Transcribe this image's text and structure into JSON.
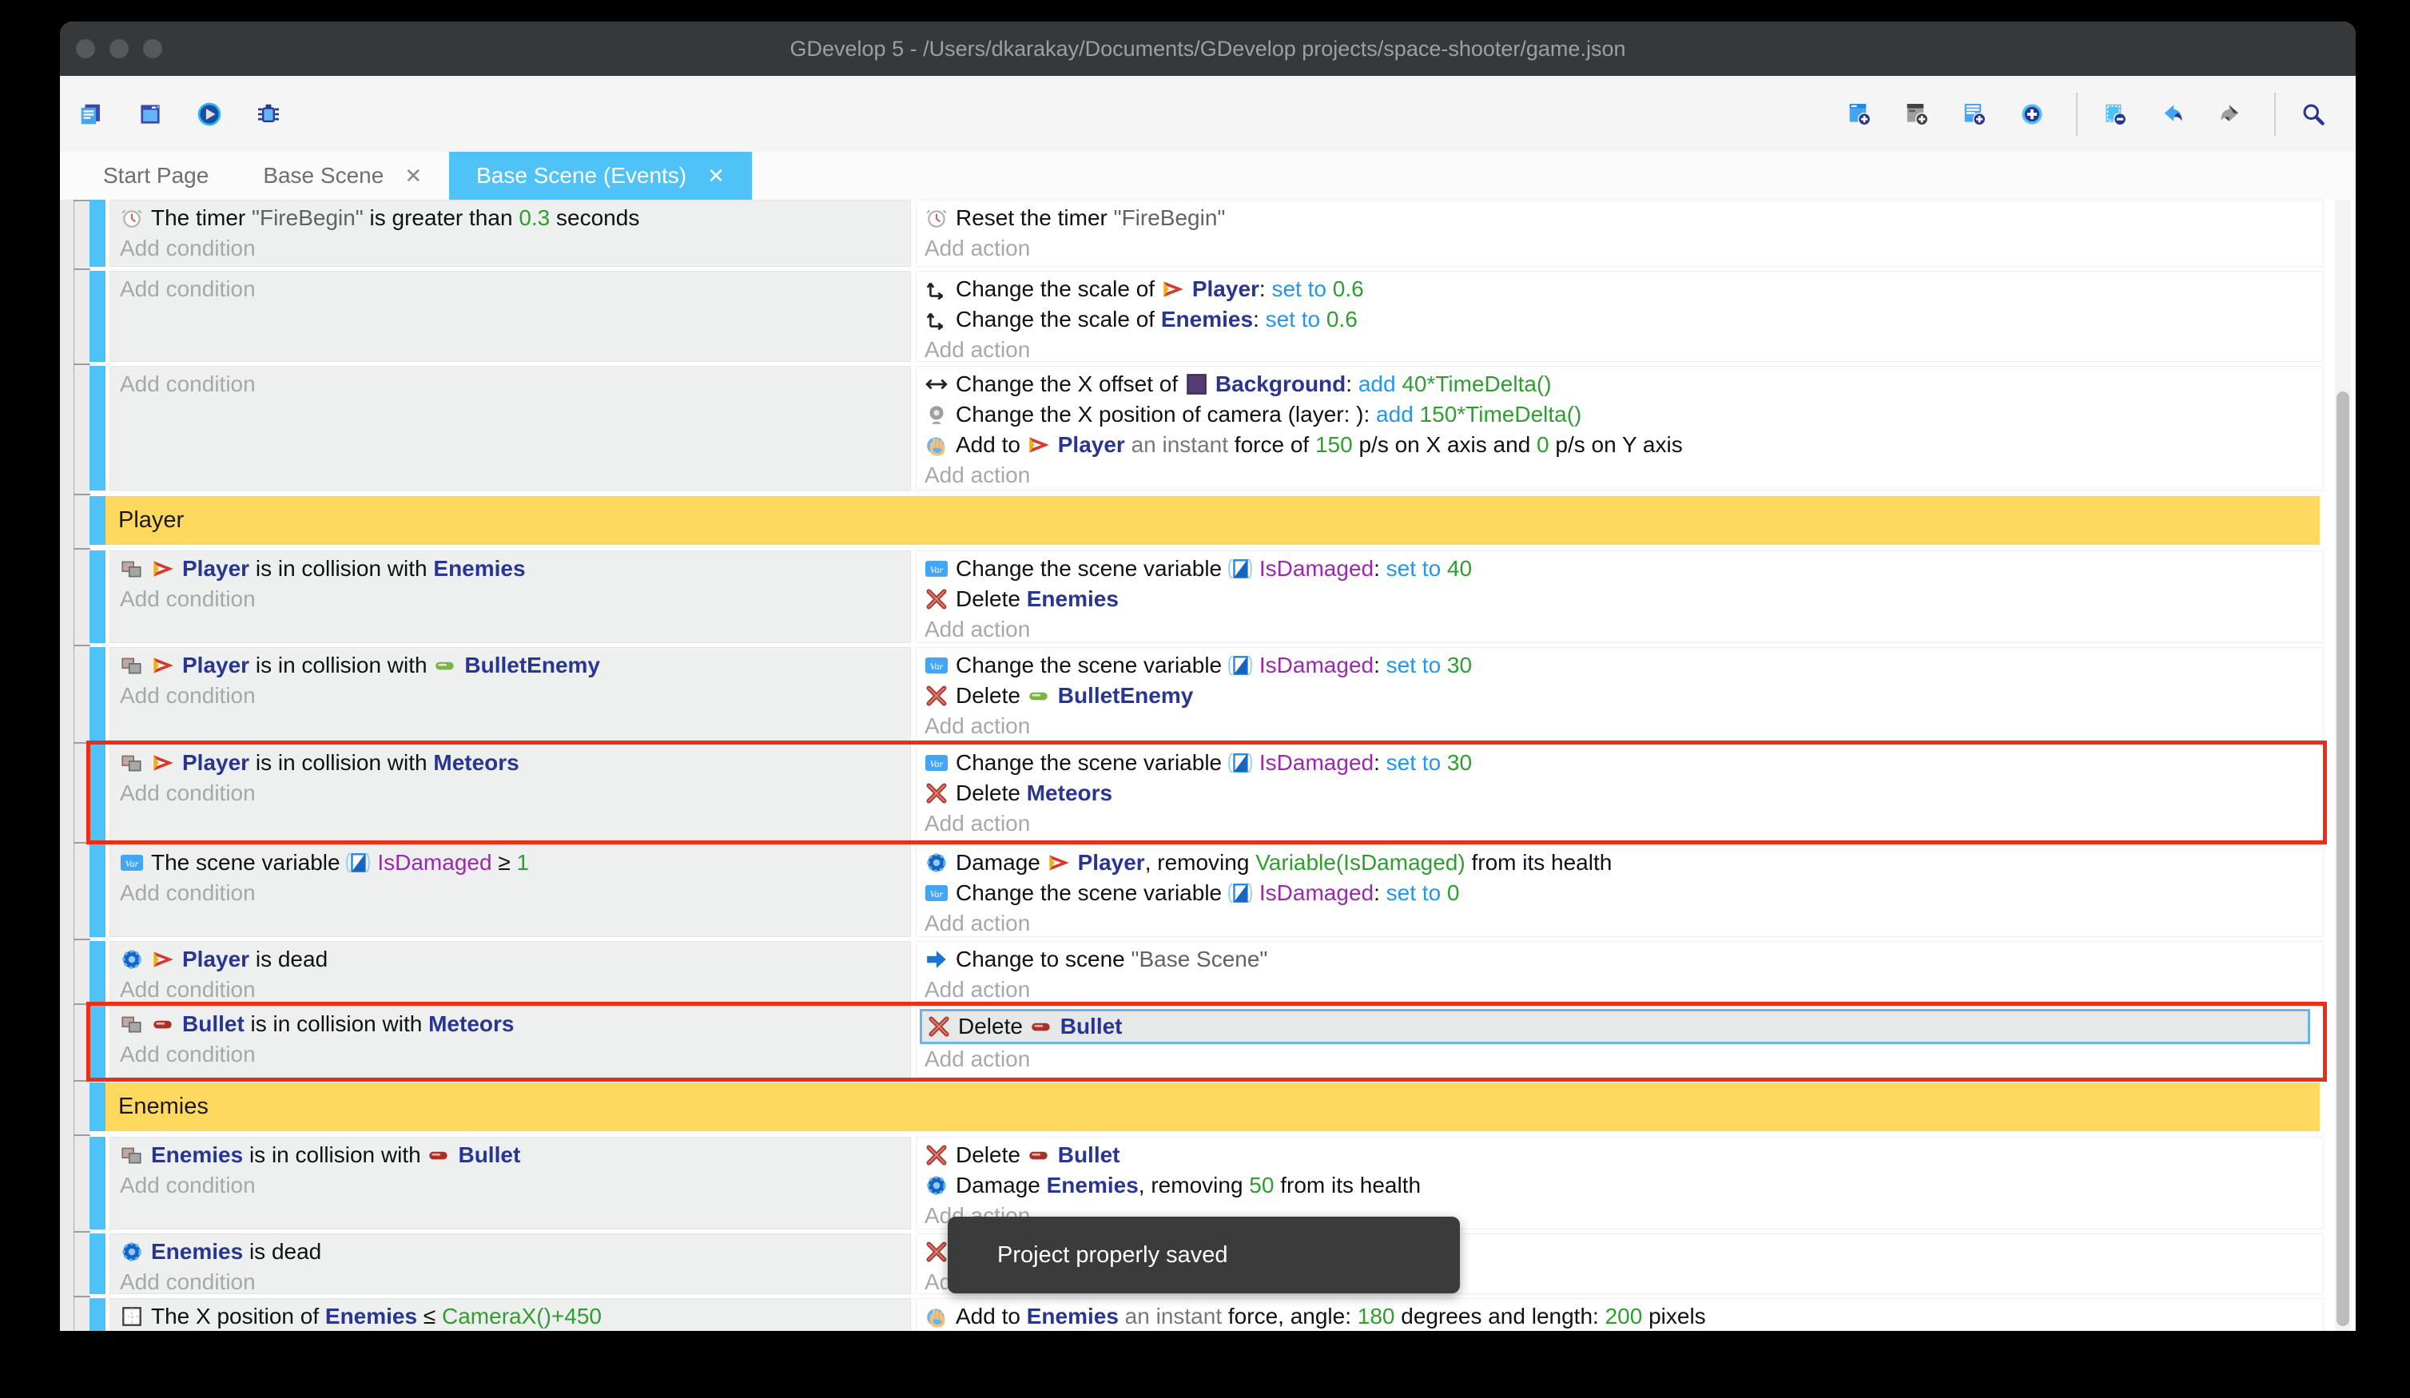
{
  "window": {
    "title": "GDevelop 5 - /Users/dkarakay/Documents/GDevelop projects/space-shooter/game.json"
  },
  "toolbar": {
    "left": [
      "project-manager",
      "scene-window",
      "play",
      "debug"
    ],
    "right": [
      "add-event",
      "add-comment",
      "add-subevent",
      "add-circle",
      "sep",
      "remove-event",
      "undo",
      "redo",
      "sep",
      "search"
    ]
  },
  "tabs": [
    {
      "label": "Start Page",
      "closable": false,
      "active": false
    },
    {
      "label": "Base Scene",
      "closable": true,
      "active": false
    },
    {
      "label": "Base Scene (Events)",
      "closable": true,
      "active": true
    }
  ],
  "labels": {
    "add_condition": "Add condition",
    "add_action": "Add action"
  },
  "toast": {
    "text": "Project properly saved"
  },
  "colors": {
    "accent": "#4fc3f7",
    "object": "#283593",
    "operator": "#2196f3",
    "value": "#2e9e2e",
    "variable": "#9c27b0",
    "group_bar": "#ffd95e",
    "highlight_border": "#ee2d16"
  },
  "events": [
    {
      "type": "event",
      "h": 84,
      "cond": {
        "lines": [
          [
            {
              "i": "clock"
            },
            {
              "t": "The timer "
            },
            {
              "t": "\"FireBegin\"",
              "s": "q"
            },
            {
              "t": " is greater than "
            },
            {
              "t": "0.3",
              "s": "g"
            },
            {
              "t": " seconds"
            }
          ]
        ],
        "add": "Add condition"
      },
      "act": {
        "lines": [
          [
            {
              "i": "clock"
            },
            {
              "t": "Reset the timer "
            },
            {
              "t": "\"FireBegin\"",
              "s": "q"
            }
          ]
        ],
        "add": "Add action"
      }
    },
    {
      "type": "event",
      "h": 114,
      "cond": {
        "lines": [],
        "add": "Add condition"
      },
      "act": {
        "lines": [
          [
            {
              "i": "scale"
            },
            {
              "t": "Change the scale of "
            },
            {
              "i": "player"
            },
            {
              "t": "Player",
              "s": "o"
            },
            {
              "t": ": "
            },
            {
              "t": "set to ",
              "s": "b"
            },
            {
              "t": "0.6",
              "s": "g"
            }
          ],
          [
            {
              "i": "scale"
            },
            {
              "t": "Change the scale of "
            },
            {
              "t": "Enemies",
              "s": "o"
            },
            {
              "t": ": "
            },
            {
              "t": "set to ",
              "s": "b"
            },
            {
              "t": "0.6",
              "s": "g"
            }
          ]
        ],
        "add": "Add action"
      }
    },
    {
      "type": "event",
      "h": 156,
      "gapAfter": 7,
      "cond": {
        "lines": [],
        "add": "Add condition"
      },
      "act": {
        "lines": [
          [
            {
              "i": "harrow"
            },
            {
              "t": "Change the X offset of "
            },
            {
              "i": "bg"
            },
            {
              "t": "Background",
              "s": "o"
            },
            {
              "t": ": "
            },
            {
              "t": "add ",
              "s": "b"
            },
            {
              "t": "40*TimeDelta()",
              "s": "g"
            }
          ],
          [
            {
              "i": "camera"
            },
            {
              "t": "Change the X position of camera (layer: ): "
            },
            {
              "t": "add ",
              "s": "b"
            },
            {
              "t": "150*TimeDelta()",
              "s": "g"
            }
          ],
          [
            {
              "i": "hand"
            },
            {
              "t": "Add to "
            },
            {
              "i": "player"
            },
            {
              "t": "Player",
              "s": "o"
            },
            {
              "t": " an instant ",
              "s": "d"
            },
            {
              "t": "force of "
            },
            {
              "t": "150",
              "s": "g"
            },
            {
              "t": " p/s on X axis and "
            },
            {
              "t": "0",
              "s": "g"
            },
            {
              "t": " p/s on Y axis"
            }
          ]
        ],
        "add": "Add action"
      }
    },
    {
      "type": "group",
      "h": 61,
      "gapAfter": 7,
      "label": "Player"
    },
    {
      "type": "event",
      "h": 116,
      "cond": {
        "lines": [
          [
            {
              "i": "collision"
            },
            {
              "i": "player"
            },
            {
              "t": "Player",
              "s": "o"
            },
            {
              "t": " is in collision with "
            },
            {
              "t": "Enemies",
              "s": "o"
            }
          ]
        ],
        "add": "Add condition"
      },
      "act": {
        "lines": [
          [
            {
              "i": "var"
            },
            {
              "t": "Change the scene variable "
            },
            {
              "i": "varbadge"
            },
            {
              "t": "IsDamaged",
              "s": "v"
            },
            {
              "t": ": "
            },
            {
              "t": "set to ",
              "s": "b"
            },
            {
              "t": "40",
              "s": "g"
            }
          ],
          [
            {
              "i": "delete"
            },
            {
              "t": "Delete "
            },
            {
              "t": "Enemies",
              "s": "o"
            }
          ]
        ],
        "add": "Add action"
      }
    },
    {
      "type": "event",
      "h": 117,
      "cond": {
        "lines": [
          [
            {
              "i": "collision"
            },
            {
              "i": "player"
            },
            {
              "t": "Player",
              "s": "o"
            },
            {
              "t": " is in collision with "
            },
            {
              "i": "bulletg"
            },
            {
              "t": "BulletEnemy",
              "s": "o"
            }
          ]
        ],
        "add": "Add condition"
      },
      "act": {
        "lines": [
          [
            {
              "i": "var"
            },
            {
              "t": "Change the scene variable "
            },
            {
              "i": "varbadge"
            },
            {
              "t": "IsDamaged",
              "s": "v"
            },
            {
              "t": ": "
            },
            {
              "t": "set to ",
              "s": "b"
            },
            {
              "t": "30",
              "s": "g"
            }
          ],
          [
            {
              "i": "delete"
            },
            {
              "t": "Delete "
            },
            {
              "i": "bulletg"
            },
            {
              "t": "BulletEnemy",
              "s": "o"
            }
          ]
        ],
        "add": "Add action"
      }
    },
    {
      "type": "event",
      "h": 120,
      "highlight": true,
      "cond": {
        "lines": [
          [
            {
              "i": "collision"
            },
            {
              "i": "player"
            },
            {
              "t": "Player",
              "s": "o"
            },
            {
              "t": " is in collision with "
            },
            {
              "t": "Meteors",
              "s": "o"
            }
          ]
        ],
        "add": "Add condition"
      },
      "act": {
        "lines": [
          [
            {
              "i": "var"
            },
            {
              "t": "Change the scene variable "
            },
            {
              "i": "varbadge"
            },
            {
              "t": "IsDamaged",
              "s": "v"
            },
            {
              "t": ": "
            },
            {
              "t": "set to ",
              "s": "b"
            },
            {
              "t": "30",
              "s": "g"
            }
          ],
          [
            {
              "i": "delete"
            },
            {
              "t": "Delete "
            },
            {
              "t": "Meteors",
              "s": "o"
            }
          ]
        ],
        "add": "Add action"
      }
    },
    {
      "type": "event",
      "h": 116,
      "cond": {
        "lines": [
          [
            {
              "i": "var"
            },
            {
              "t": "The scene variable "
            },
            {
              "i": "varbadge"
            },
            {
              "t": "IsDamaged",
              "s": "v"
            },
            {
              "t": " ≥ "
            },
            {
              "t": "1",
              "s": "g"
            }
          ]
        ],
        "add": "Add condition"
      },
      "act": {
        "lines": [
          [
            {
              "i": "health"
            },
            {
              "t": "Damage "
            },
            {
              "i": "player"
            },
            {
              "t": "Player",
              "s": "o"
            },
            {
              "t": ", removing "
            },
            {
              "t": "Variable(IsDamaged)",
              "s": "g"
            },
            {
              "t": " from its health"
            }
          ],
          [
            {
              "i": "var"
            },
            {
              "t": "Change the scene variable "
            },
            {
              "i": "varbadge"
            },
            {
              "t": "IsDamaged",
              "s": "v"
            },
            {
              "t": ": "
            },
            {
              "t": "set to ",
              "s": "b"
            },
            {
              "t": "0",
              "s": "g"
            }
          ]
        ],
        "add": "Add action"
      }
    },
    {
      "type": "event",
      "h": 76,
      "cond": {
        "lines": [
          [
            {
              "i": "health"
            },
            {
              "i": "player"
            },
            {
              "t": "Player",
              "s": "o"
            },
            {
              "t": " is dead"
            }
          ]
        ],
        "add": "Add condition"
      },
      "act": {
        "lines": [
          [
            {
              "i": "scenearrow"
            },
            {
              "t": "Change to scene "
            },
            {
              "t": "\"Base Scene\"",
              "s": "q"
            }
          ]
        ],
        "add": "Add action"
      }
    },
    {
      "type": "event",
      "h": 90,
      "gapAfter": 6,
      "highlight": true,
      "selAction": 0,
      "cond": {
        "lines": [
          [
            {
              "i": "collision"
            },
            {
              "i": "bulletr"
            },
            {
              "t": "Bullet",
              "s": "o"
            },
            {
              "t": " is in collision with "
            },
            {
              "t": "Meteors",
              "s": "o"
            }
          ]
        ],
        "add": "Add condition"
      },
      "act": {
        "lines": [
          [
            {
              "i": "delete"
            },
            {
              "t": "Delete "
            },
            {
              "i": "bulletr"
            },
            {
              "t": "Bullet",
              "s": "o"
            }
          ]
        ],
        "add": "Add action"
      }
    },
    {
      "type": "group",
      "h": 61,
      "gapAfter": 7,
      "label": "Enemies"
    },
    {
      "type": "event",
      "h": 116,
      "cond": {
        "lines": [
          [
            {
              "i": "collision"
            },
            {
              "t": "Enemies",
              "s": "o"
            },
            {
              "t": " is in collision with "
            },
            {
              "i": "bulletr"
            },
            {
              "t": "Bullet",
              "s": "o"
            }
          ]
        ],
        "add": "Add condition"
      },
      "act": {
        "lines": [
          [
            {
              "i": "delete"
            },
            {
              "t": "Delete "
            },
            {
              "i": "bulletr"
            },
            {
              "t": "Bullet",
              "s": "o"
            }
          ],
          [
            {
              "i": "health"
            },
            {
              "t": "Damage "
            },
            {
              "t": "Enemies",
              "s": "o"
            },
            {
              "t": ", removing "
            },
            {
              "t": "50",
              "s": "g"
            },
            {
              "t": " from its health"
            }
          ]
        ],
        "add": "Add action"
      }
    },
    {
      "type": "event",
      "h": 76,
      "cond": {
        "lines": [
          [
            {
              "i": "health"
            },
            {
              "t": "Enemies",
              "s": "o"
            },
            {
              "t": " is dead"
            }
          ]
        ],
        "add": "Add condition"
      },
      "act": {
        "lines": [
          [
            {
              "i": "delete"
            }
          ]
        ],
        "add": "Add action"
      }
    },
    {
      "type": "event",
      "h": 90,
      "cond": {
        "lines": [
          [
            {
              "i": "position"
            },
            {
              "t": "The X position of "
            },
            {
              "t": "Enemies",
              "s": "o"
            },
            {
              "t": " ≤ "
            },
            {
              "t": "CameraX()+450",
              "s": "g"
            }
          ]
        ],
        "add": "Add condition"
      },
      "act": {
        "lines": [
          [
            {
              "i": "hand"
            },
            {
              "t": "Add to "
            },
            {
              "t": "Enemies",
              "s": "o"
            },
            {
              "t": " an instant ",
              "s": "d"
            },
            {
              "t": "force, angle: "
            },
            {
              "t": "180",
              "s": "g"
            },
            {
              "t": " degrees and length: "
            },
            {
              "t": "200",
              "s": "g"
            },
            {
              "t": " pixels"
            }
          ]
        ],
        "add": "Add action"
      }
    }
  ]
}
